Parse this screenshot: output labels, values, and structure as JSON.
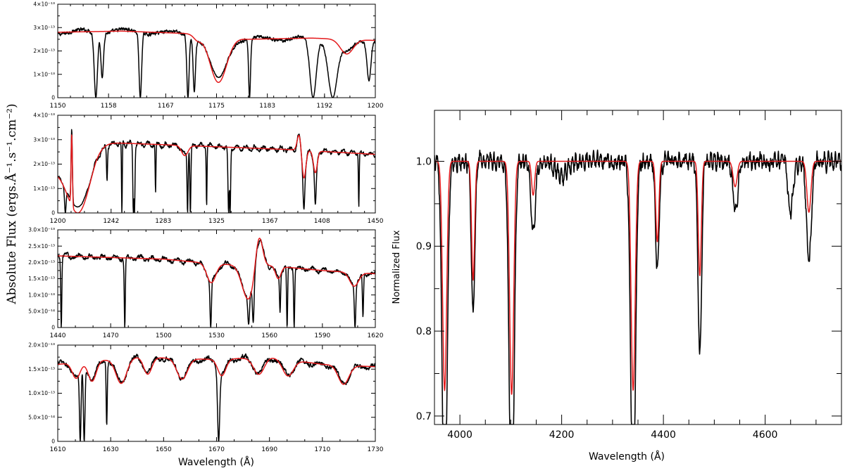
{
  "figure": {
    "left_ylabel": "Absolute Flux (ergs.Å⁻¹.s⁻¹.cm⁻²)",
    "left_xlabel": "Wavelength (Å)",
    "right_xlabel": "Wavelength (Å)",
    "right_ylabel": "Normalized Flux",
    "colors": {
      "observed": "#000000",
      "model": "#e41a1c",
      "frame": "#000000"
    }
  },
  "chart_data": [
    {
      "type": "line",
      "panel": "uv-1",
      "xlim": [
        1150,
        1200
      ],
      "ylim": [
        0,
        4e-13
      ],
      "xticks": [
        1150,
        1158,
        1167,
        1175,
        1183,
        1192,
        1200
      ],
      "yticks": [
        {
          "v": 0,
          "label": "0"
        },
        {
          "v": 1e-13,
          "label": "1×10⁻¹³"
        },
        {
          "v": 2e-13,
          "label": "2×10⁻¹³"
        },
        {
          "v": 3e-13,
          "label": "3×10⁻¹³"
        },
        {
          "v": 4e-13,
          "label": "4×10⁻¹³"
        }
      ],
      "continuum": [
        [
          1150,
          2.8e-13
        ],
        [
          1160,
          2.85e-13
        ],
        [
          1170,
          2.75e-13
        ],
        [
          1180,
          2.5e-13
        ],
        [
          1190,
          2.55e-13
        ],
        [
          1200,
          2.45e-13
        ]
      ],
      "model_lines": [
        {
          "c": 1175.3,
          "d": 0.75,
          "w": 1.3
        },
        {
          "c": 1195.5,
          "d": 0.25,
          "w": 1.0
        },
        {
          "c": 1172.0,
          "d": 0.08,
          "w": 0.6
        }
      ],
      "obs_lines": [
        {
          "c": 1156.0,
          "d": 1.0,
          "w": 0.25
        },
        {
          "c": 1157.0,
          "d": 0.7,
          "w": 0.2
        },
        {
          "c": 1163.0,
          "d": 1.0,
          "w": 0.2
        },
        {
          "c": 1170.5,
          "d": 1.0,
          "w": 0.18
        },
        {
          "c": 1171.5,
          "d": 0.9,
          "w": 0.18
        },
        {
          "c": 1180.2,
          "d": 1.0,
          "w": 0.15
        },
        {
          "c": 1190.2,
          "d": 1.0,
          "w": 0.5
        },
        {
          "c": 1193.3,
          "d": 1.0,
          "w": 0.7
        },
        {
          "c": 1199.0,
          "d": 0.7,
          "w": 0.3
        }
      ],
      "series": [
        {
          "role": "observed"
        },
        {
          "role": "model"
        }
      ]
    },
    {
      "type": "line",
      "panel": "uv-2",
      "xlim": [
        1200,
        1450
      ],
      "ylim": [
        0,
        4e-13
      ],
      "xticks": [
        1200,
        1242,
        1283,
        1325,
        1367,
        1408,
        1450
      ],
      "yticks": [
        {
          "v": 0,
          "label": "0"
        },
        {
          "v": 1e-13,
          "label": "1×10⁻¹³"
        },
        {
          "v": 2e-13,
          "label": "2×10⁻¹³"
        },
        {
          "v": 3e-13,
          "label": "3×10⁻¹³"
        },
        {
          "v": 4e-13,
          "label": "4×10⁻¹³"
        }
      ],
      "continuum": [
        [
          1200,
          1.9e-13
        ],
        [
          1230,
          2.9e-13
        ],
        [
          1280,
          2.8e-13
        ],
        [
          1330,
          2.7e-13
        ],
        [
          1380,
          2.6e-13
        ],
        [
          1450,
          2.4e-13
        ]
      ],
      "model_lines": [
        {
          "c": 1215.7,
          "d": 1.0,
          "w": 9
        },
        {
          "c": 1393.8,
          "d": 0.45,
          "w": 1.5
        },
        {
          "c": 1402.8,
          "d": 0.35,
          "w": 1.5
        },
        {
          "c": 1300,
          "d": 0.15,
          "w": 2.5
        }
      ],
      "obs_lines": [
        {
          "c": 1206,
          "d": 1.0,
          "w": 0.6
        },
        {
          "c": 1238.8,
          "d": 0.5,
          "w": 0.4
        },
        {
          "c": 1250.5,
          "d": 1.0,
          "w": 0.3
        },
        {
          "c": 1259.5,
          "d": 1.0,
          "w": 0.4
        },
        {
          "c": 1260.4,
          "d": 1.0,
          "w": 0.4
        },
        {
          "c": 1277,
          "d": 0.7,
          "w": 0.3
        },
        {
          "c": 1302.2,
          "d": 1.0,
          "w": 0.4
        },
        {
          "c": 1304.4,
          "d": 1.0,
          "w": 0.4
        },
        {
          "c": 1317.2,
          "d": 0.9,
          "w": 0.3
        },
        {
          "c": 1334.5,
          "d": 1.0,
          "w": 0.5
        },
        {
          "c": 1335.7,
          "d": 1.0,
          "w": 0.4
        },
        {
          "c": 1393.8,
          "d": 0.9,
          "w": 0.6
        },
        {
          "c": 1402.8,
          "d": 0.8,
          "w": 0.6
        },
        {
          "c": 1437,
          "d": 0.9,
          "w": 0.3
        }
      ],
      "emission": [
        {
          "c": 1211,
          "h": 1.3,
          "w": 0.5
        },
        {
          "c": 1390,
          "h": 0.25,
          "w": 1.5
        }
      ],
      "series": [
        {
          "role": "observed"
        },
        {
          "role": "model"
        }
      ]
    },
    {
      "type": "line",
      "panel": "uv-3",
      "xlim": [
        1440,
        1620
      ],
      "ylim": [
        0,
        3e-13
      ],
      "xticks": [
        1440,
        1470,
        1500,
        1530,
        1560,
        1590,
        1620
      ],
      "yticks": [
        {
          "v": 0,
          "label": "0"
        },
        {
          "v": 5e-14,
          "label": "5.0×10⁻¹⁴"
        },
        {
          "v": 1e-13,
          "label": "1.0×10⁻¹³"
        },
        {
          "v": 1.5e-13,
          "label": "1.5×10⁻¹³"
        },
        {
          "v": 2e-13,
          "label": "2.0×10⁻¹³"
        },
        {
          "v": 2.5e-13,
          "label": "2.5×10⁻¹³"
        },
        {
          "v": 3e-13,
          "label": "3.0×10⁻¹³"
        }
      ],
      "continuum": [
        [
          1440,
          2.2e-13
        ],
        [
          1470,
          2.15e-13
        ],
        [
          1500,
          2.1e-13
        ],
        [
          1530,
          1.95e-13
        ],
        [
          1560,
          1.9e-13
        ],
        [
          1590,
          1.75e-13
        ],
        [
          1620,
          1.65e-13
        ]
      ],
      "model_lines": [
        {
          "c": 1527,
          "d": 0.3,
          "w": 2.5
        },
        {
          "c": 1548,
          "d": 0.55,
          "w": 3.5
        },
        {
          "c": 1565,
          "d": 0.2,
          "w": 1.5
        },
        {
          "c": 1608,
          "d": 0.25,
          "w": 2.5
        }
      ],
      "obs_lines": [
        {
          "c": 1442,
          "d": 1.0,
          "w": 0.3
        },
        {
          "c": 1478,
          "d": 1.0,
          "w": 0.3
        },
        {
          "c": 1526.7,
          "d": 1.0,
          "w": 0.4
        },
        {
          "c": 1548.2,
          "d": 0.9,
          "w": 0.5
        },
        {
          "c": 1550.8,
          "d": 0.9,
          "w": 0.5
        },
        {
          "c": 1566,
          "d": 0.7,
          "w": 0.3
        },
        {
          "c": 1570,
          "d": 1.0,
          "w": 0.3
        },
        {
          "c": 1574,
          "d": 1.0,
          "w": 0.3
        },
        {
          "c": 1608.5,
          "d": 1.0,
          "w": 0.4
        },
        {
          "c": 1613,
          "d": 0.8,
          "w": 0.3
        }
      ],
      "emission": [
        {
          "c": 1554,
          "h": 0.55,
          "w": 2.0
        }
      ],
      "series": [
        {
          "role": "observed"
        },
        {
          "role": "model"
        }
      ]
    },
    {
      "type": "line",
      "panel": "uv-4",
      "xlim": [
        1610,
        1730
      ],
      "ylim": [
        0,
        2e-13
      ],
      "xticks": [
        1610,
        1630,
        1650,
        1670,
        1690,
        1710,
        1730
      ],
      "yticks": [
        {
          "v": 0,
          "label": "0"
        },
        {
          "v": 5e-14,
          "label": "5.0×10⁻¹⁴"
        },
        {
          "v": 1e-13,
          "label": "1.0×10⁻¹³"
        },
        {
          "v": 1.5e-13,
          "label": "1.5×10⁻¹³"
        },
        {
          "v": 2e-13,
          "label": "2.0×10⁻¹³"
        }
      ],
      "continuum": [
        [
          1610,
          1.6e-13
        ],
        [
          1640,
          1.75e-13
        ],
        [
          1670,
          1.7e-13
        ],
        [
          1690,
          1.75e-13
        ],
        [
          1710,
          1.6e-13
        ],
        [
          1730,
          1.55e-13
        ]
      ],
      "model_lines": [
        {
          "c": 1617,
          "d": 0.2,
          "w": 1.5
        },
        {
          "c": 1623,
          "d": 0.25,
          "w": 1.5
        },
        {
          "c": 1634,
          "d": 0.3,
          "w": 2
        },
        {
          "c": 1644,
          "d": 0.2,
          "w": 1.5
        },
        {
          "c": 1657,
          "d": 0.25,
          "w": 2
        },
        {
          "c": 1672,
          "d": 0.2,
          "w": 1.5
        },
        {
          "c": 1686,
          "d": 0.2,
          "w": 2
        },
        {
          "c": 1697,
          "d": 0.2,
          "w": 2
        },
        {
          "c": 1718,
          "d": 0.25,
          "w": 2
        }
      ],
      "obs_lines": [
        {
          "c": 1618.5,
          "d": 1.0,
          "w": 0.3
        },
        {
          "c": 1620,
          "d": 1.0,
          "w": 0.3
        },
        {
          "c": 1628.5,
          "d": 0.8,
          "w": 0.2
        },
        {
          "c": 1670.8,
          "d": 1.0,
          "w": 0.4
        }
      ],
      "series": [
        {
          "role": "observed"
        },
        {
          "role": "model"
        }
      ]
    },
    {
      "type": "line",
      "panel": "optical",
      "xlim": [
        3950,
        4750
      ],
      "ylim": [
        0.69,
        1.06
      ],
      "xticks": [
        4000,
        4200,
        4400,
        4600
      ],
      "yticks": [
        {
          "v": 0.7,
          "label": "0.7"
        },
        {
          "v": 0.8,
          "label": "0.8"
        },
        {
          "v": 0.9,
          "label": "0.9"
        },
        {
          "v": 1.0,
          "label": "1.0"
        }
      ],
      "continuum": [
        [
          3950,
          1.0
        ],
        [
          4750,
          1.0
        ]
      ],
      "model_lines": [
        {
          "c": 3970,
          "d": 0.27,
          "w": 4
        },
        {
          "c": 4026,
          "d": 0.14,
          "w": 3
        },
        {
          "c": 4101.7,
          "d": 0.275,
          "w": 4
        },
        {
          "c": 4340.5,
          "d": 0.27,
          "w": 4
        },
        {
          "c": 4388,
          "d": 0.095,
          "w": 3
        },
        {
          "c": 4471.5,
          "d": 0.135,
          "w": 3
        },
        {
          "c": 4541,
          "d": 0.03,
          "w": 4
        },
        {
          "c": 4686,
          "d": 0.06,
          "w": 4
        },
        {
          "c": 4144,
          "d": 0.04,
          "w": 3
        }
      ],
      "obs_lines": [
        {
          "c": 3970,
          "d": 0.24,
          "w": 5
        },
        {
          "c": 4026,
          "d": 0.06,
          "w": 4
        },
        {
          "c": 4101.7,
          "d": 0.24,
          "w": 5
        },
        {
          "c": 4340.5,
          "d": 0.21,
          "w": 5
        },
        {
          "c": 4388,
          "d": 0.05,
          "w": 4
        },
        {
          "c": 4471.5,
          "d": 0.12,
          "w": 4
        },
        {
          "c": 4686,
          "d": 0.07,
          "w": 5
        },
        {
          "c": 4650,
          "d": 0.06,
          "w": 5
        },
        {
          "c": 4144,
          "d": 0.05,
          "w": 5
        },
        {
          "c": 4542,
          "d": 0.03,
          "w": 5
        },
        {
          "c": 4200,
          "d": 0.02,
          "w": 10
        }
      ],
      "series": [
        {
          "role": "observed"
        },
        {
          "role": "model"
        }
      ]
    }
  ]
}
